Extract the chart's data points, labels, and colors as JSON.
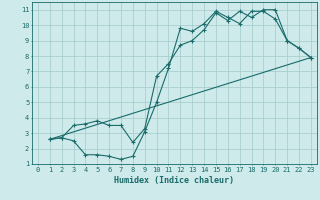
{
  "xlabel": "Humidex (Indice chaleur)",
  "ylabel": "",
  "bg_color": "#ceeaea",
  "grid_color": "#aacece",
  "line_color": "#1a6b6b",
  "xlim": [
    -0.5,
    23.5
  ],
  "ylim": [
    1,
    11.5
  ],
  "xticks": [
    0,
    1,
    2,
    3,
    4,
    5,
    6,
    7,
    8,
    9,
    10,
    11,
    12,
    13,
    14,
    15,
    16,
    17,
    18,
    19,
    20,
    21,
    22,
    23
  ],
  "yticks": [
    1,
    2,
    3,
    4,
    5,
    6,
    7,
    8,
    9,
    10,
    11
  ],
  "series1_x": [
    1,
    2,
    3,
    4,
    5,
    6,
    7,
    8,
    9,
    10,
    11,
    12,
    13,
    14,
    15,
    16,
    17,
    18,
    19,
    20,
    21,
    22,
    23
  ],
  "series1_y": [
    2.6,
    2.7,
    2.5,
    1.6,
    1.6,
    1.5,
    1.3,
    1.5,
    3.1,
    5.0,
    7.2,
    9.8,
    9.6,
    10.1,
    10.9,
    10.5,
    10.1,
    10.9,
    10.9,
    10.4,
    9.0,
    8.5,
    7.9
  ],
  "series2_x": [
    1,
    2,
    3,
    4,
    5,
    6,
    7,
    8,
    9,
    10,
    11,
    12,
    13,
    14,
    15,
    16,
    17,
    18,
    19,
    20,
    21,
    22,
    23
  ],
  "series2_y": [
    2.6,
    2.7,
    3.5,
    3.6,
    3.8,
    3.5,
    3.5,
    2.4,
    3.3,
    6.7,
    7.5,
    8.7,
    9.0,
    9.7,
    10.8,
    10.3,
    10.9,
    10.5,
    11.0,
    11.0,
    9.0,
    8.5,
    7.9
  ],
  "series3_x": [
    1,
    23
  ],
  "series3_y": [
    2.6,
    7.9
  ]
}
